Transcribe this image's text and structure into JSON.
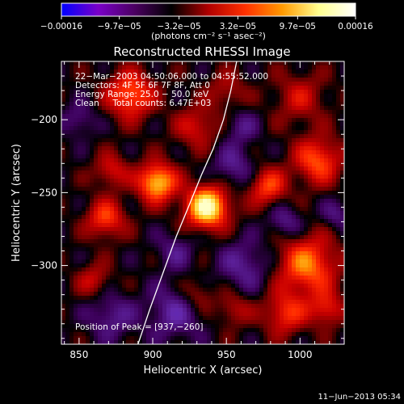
{
  "colorbar": {
    "tick_labels": [
      "−0.00016",
      "−9.7e−05",
      "−3.2e−05",
      "3.2e−05",
      "9.7e−05",
      "0.00016"
    ],
    "tick_values": [
      -0.00016,
      -9.7e-05,
      -3.2e-05,
      3.2e-05,
      9.7e-05,
      0.00016
    ],
    "range": [
      -0.00016,
      0.00016
    ],
    "units_label": "(photons cm⁻² s⁻¹ asec⁻²)",
    "colors": [
      "#0000ff",
      "#7a00c8",
      "#4a0060",
      "#000000",
      "#b00000",
      "#ff3000",
      "#ff9900",
      "#ffff90",
      "#ffffff"
    ]
  },
  "chart_data": {
    "type": "heatmap",
    "title": "Reconstructed RHESSI Image",
    "xlabel": "Heliocentric X (arcsec)",
    "ylabel": "Heliocentric Y (arcsec)",
    "xlim": [
      838,
      1030
    ],
    "ylim": [
      -354,
      -160
    ],
    "x_ticks": [
      850,
      900,
      950,
      1000
    ],
    "x_tick_labels": [
      "850",
      "900",
      "950",
      "1000"
    ],
    "y_ticks": [
      -200,
      -250,
      -300
    ],
    "y_tick_labels": [
      "−200",
      "−250",
      "−300"
    ],
    "sources": [
      {
        "x": 937,
        "y": -260,
        "sigma": 10,
        "amp": 1.0
      },
      {
        "x": 903,
        "y": -243,
        "sigma": 9,
        "amp": 0.82
      },
      {
        "x": 885,
        "y": -183,
        "sigma": 11,
        "amp": 0.6
      },
      {
        "x": 978,
        "y": -246,
        "sigma": 9,
        "amp": 0.5
      },
      {
        "x": 1012,
        "y": -228,
        "sigma": 11,
        "amp": 0.55
      },
      {
        "x": 868,
        "y": -268,
        "sigma": 9,
        "amp": 0.5
      },
      {
        "x": 1005,
        "y": -300,
        "sigma": 14,
        "amp": 0.62
      },
      {
        "x": 990,
        "y": -333,
        "sigma": 10,
        "amp": 0.45
      },
      {
        "x": 955,
        "y": -330,
        "sigma": 8,
        "amp": 0.28
      },
      {
        "x": 1018,
        "y": -330,
        "sigma": 8,
        "amp": 0.4
      },
      {
        "x": 930,
        "y": -205,
        "sigma": 10,
        "amp": 0.35
      },
      {
        "x": 872,
        "y": -235,
        "sigma": 8,
        "amp": 0.35
      },
      {
        "x": 950,
        "y": -180,
        "sigma": 9,
        "amp": 0.25
      },
      {
        "x": 1000,
        "y": -185,
        "sigma": 12,
        "amp": 0.3
      },
      {
        "x": 860,
        "y": -310,
        "sigma": 8,
        "amp": 0.3
      },
      {
        "x": 930,
        "y": -320,
        "sigma": 8,
        "amp": 0.28
      },
      {
        "x": 962,
        "y": -300,
        "sigma": 12,
        "amp": -0.32
      },
      {
        "x": 955,
        "y": -232,
        "sigma": 10,
        "amp": -0.3
      },
      {
        "x": 915,
        "y": -332,
        "sigma": 13,
        "amp": -0.35
      },
      {
        "x": 872,
        "y": -335,
        "sigma": 11,
        "amp": -0.3
      },
      {
        "x": 850,
        "y": -200,
        "sigma": 8,
        "amp": -0.25
      },
      {
        "x": 960,
        "y": -205,
        "sigma": 8,
        "amp": -0.25
      },
      {
        "x": 990,
        "y": -270,
        "sigma": 8,
        "amp": -0.3
      },
      {
        "x": 1025,
        "y": -265,
        "sigma": 7,
        "amp": -0.25
      },
      {
        "x": 915,
        "y": -290,
        "sigma": 9,
        "amp": -0.25
      }
    ],
    "limb_curve": [
      [
        890,
        -354
      ],
      [
        898,
        -330
      ],
      [
        907,
        -305
      ],
      [
        916,
        -280
      ],
      [
        925,
        -258
      ],
      [
        933,
        -238
      ],
      [
        941,
        -220
      ],
      [
        948,
        -200
      ],
      [
        953,
        -180
      ],
      [
        957,
        -160
      ]
    ],
    "peak": {
      "x": 937,
      "y": -260
    },
    "info_lines": [
      "22−Mar−2003 04:50:06.000 to 04:55:52.000",
      "Detectors: 4F 5F 6F 7F 8F, Att 0",
      "Energy Range: 25.0 − 50.0 keV",
      "Clean     Total counts: 6.47E+03"
    ],
    "peak_label": "Position of Peak = [937,−260]"
  },
  "footer": {
    "timestamp": "11−Jun−2013 05:34"
  }
}
